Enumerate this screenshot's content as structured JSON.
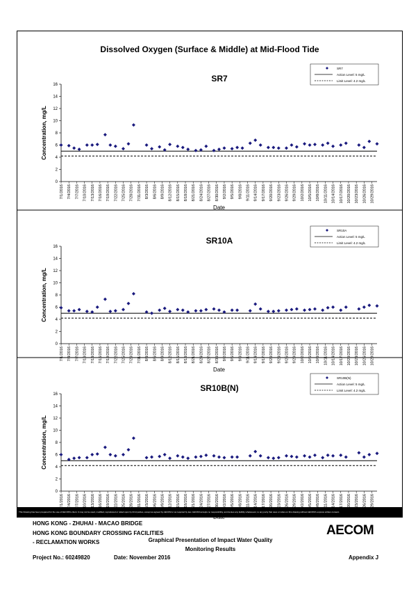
{
  "main_title": "Dissolved Oxygen (Surface & Middle) at Mid-Flood Tide",
  "disclaimer": "This Drawing has been prepared for the use of AECOM's client. It may not be used, modified, reproduced or relied upon by third parties, except as agreed by AECOM or as required by law. AECOM accepts no responsibility, and denies any liability whatsoever, to any party that uses or relies on this drawing without AECOM's express written consent.",
  "footer": {
    "project_line1": "HONG KONG - ZHUHAI - MACAO BRIDGE",
    "project_line2": "HONG KONG BOUNDARY CROSSING FACILITIES",
    "project_line3": "- RECLAMATION WORKS",
    "description_line1": "Graphical Presentation of Impact Water Quality",
    "description_line2": "Monitoring Results",
    "project_no": "Project No.: 60249820",
    "date": "Date: November 2016",
    "appendix": "Appendix J",
    "logo": "AECOM"
  },
  "colors": {
    "marker": "#1a1a7e",
    "line": "#000000"
  },
  "chart_data": [
    {
      "type": "scatter",
      "title": "SR7",
      "xlabel": "Date",
      "ylabel": "Concentration, mg/L",
      "ylim": [
        0,
        16
      ],
      "yticks": [
        "0",
        "2",
        "4",
        "6",
        "8",
        "10",
        "12",
        "14",
        "16"
      ],
      "xticks": [
        "7/1/2016",
        "7/4/2016",
        "7/7/2016",
        "7/10/2016",
        "7/13/2016",
        "7/16/2016",
        "7/19/2016",
        "7/22/2016",
        "7/25/2016",
        "7/28/2016",
        "7/31/2016",
        "8/3/2016",
        "8/6/2016",
        "8/9/2016",
        "8/12/2016",
        "8/15/2016",
        "8/18/2016",
        "8/21/2016",
        "8/24/2016",
        "8/27/2016",
        "8/30/2016",
        "9/2/2016",
        "9/5/2016",
        "9/8/2016",
        "9/11/2016",
        "9/14/2016",
        "9/17/2016",
        "9/20/2016",
        "9/23/2016",
        "9/26/2016",
        "9/29/2016",
        "10/2/2016",
        "10/5/2016",
        "10/8/2016",
        "10/11/2016",
        "10/14/2016",
        "10/17/2016",
        "10/20/2016",
        "10/23/2016",
        "10/26/2016",
        "10/29/2016"
      ],
      "legend_position": "top-right",
      "legend": [
        "SR7",
        "Action Level: 5 mg/L",
        "Limit Level: 4.2 mg/L"
      ],
      "action_level": 5,
      "limit_level": 4.2,
      "series": [
        {
          "name": "SR7",
          "x": [
            "7/1/2016",
            "7/4/2016",
            "7/6/2016",
            "7/8/2016",
            "7/11/2016",
            "7/13/2016",
            "7/15/2016",
            "7/18/2016",
            "7/20/2016",
            "7/22/2016",
            "7/25/2016",
            "7/27/2016",
            "7/29/2016",
            "8/3/2016",
            "8/5/2016",
            "8/8/2016",
            "8/10/2016",
            "8/12/2016",
            "8/15/2016",
            "8/17/2016",
            "8/19/2016",
            "8/22/2016",
            "8/24/2016",
            "8/26/2016",
            "8/29/2016",
            "8/31/2016",
            "9/2/2016",
            "9/5/2016",
            "9/7/2016",
            "9/9/2016",
            "9/12/2016",
            "9/14/2016",
            "9/16/2016",
            "9/19/2016",
            "9/21/2016",
            "9/23/2016",
            "9/26/2016",
            "9/28/2016",
            "9/30/2016",
            "10/3/2016",
            "10/5/2016",
            "10/7/2016",
            "10/10/2016",
            "10/12/2016",
            "10/14/2016",
            "10/17/2016",
            "10/19/2016",
            "10/24/2016",
            "10/26/2016",
            "10/28/2016",
            "10/31/2016"
          ],
          "values": [
            6.0,
            5.9,
            5.5,
            5.3,
            6.0,
            6.0,
            6.1,
            7.7,
            6.0,
            5.8,
            5.4,
            6.2,
            9.3,
            6.0,
            5.4,
            5.7,
            5.2,
            6.1,
            5.8,
            5.6,
            5.3,
            5.1,
            5.2,
            5.8,
            5.1,
            5.3,
            5.5,
            5.4,
            5.6,
            5.5,
            6.3,
            6.8,
            6.0,
            5.6,
            5.6,
            5.5,
            5.5,
            6.0,
            5.7,
            6.2,
            6.0,
            6.1,
            6.0,
            6.3,
            5.8,
            6.0,
            6.3,
            6.0,
            5.6,
            6.6,
            6.2
          ]
        }
      ]
    },
    {
      "type": "scatter",
      "title": "SR10A",
      "xlabel": "Date",
      "ylabel": "Concentration, mg/L",
      "ylim": [
        0,
        16
      ],
      "yticks": [
        "0",
        "2",
        "4",
        "6",
        "8",
        "10",
        "12",
        "14",
        "16"
      ],
      "xticks": [
        "7/1/2016",
        "7/4/2016",
        "7/7/2016",
        "7/10/2016",
        "7/13/2016",
        "7/16/2016",
        "7/19/2016",
        "7/22/2016",
        "7/25/2016",
        "7/28/2016",
        "7/31/2016",
        "8/3/2016",
        "8/6/2016",
        "8/9/2016",
        "8/12/2016",
        "8/15/2016",
        "8/18/2016",
        "8/21/2016",
        "8/24/2016",
        "8/27/2016",
        "8/30/2016",
        "9/2/2016",
        "9/5/2016",
        "9/8/2016",
        "9/11/2016",
        "9/14/2016",
        "9/17/2016",
        "9/20/2016",
        "9/23/2016",
        "9/26/2016",
        "9/29/2016",
        "10/2/2016",
        "10/5/2016",
        "10/8/2016",
        "10/11/2016",
        "10/14/2016",
        "10/17/2016",
        "10/20/2016",
        "10/23/2016",
        "10/26/2016",
        "10/29/2016"
      ],
      "legend_position": "top-right",
      "legend": [
        "SR10A",
        "Action Level: 5 mg/L",
        "Limit Level: 4.2 mg/L"
      ],
      "action_level": 5,
      "limit_level": 4.2,
      "series": [
        {
          "name": "SR10A",
          "x": [
            "7/1/2016",
            "7/4/2016",
            "7/6/2016",
            "7/8/2016",
            "7/11/2016",
            "7/13/2016",
            "7/15/2016",
            "7/18/2016",
            "7/20/2016",
            "7/22/2016",
            "7/25/2016",
            "7/27/2016",
            "7/29/2016",
            "8/3/2016",
            "8/5/2016",
            "8/8/2016",
            "8/10/2016",
            "8/12/2016",
            "8/15/2016",
            "8/17/2016",
            "8/19/2016",
            "8/22/2016",
            "8/24/2016",
            "8/26/2016",
            "8/29/2016",
            "8/31/2016",
            "9/2/2016",
            "9/5/2016",
            "9/7/2016",
            "9/12/2016",
            "9/14/2016",
            "9/16/2016",
            "9/19/2016",
            "9/21/2016",
            "9/23/2016",
            "9/26/2016",
            "9/28/2016",
            "9/30/2016",
            "10/3/2016",
            "10/5/2016",
            "10/7/2016",
            "10/10/2016",
            "10/12/2016",
            "10/14/2016",
            "10/17/2016",
            "10/19/2016",
            "10/24/2016",
            "10/26/2016",
            "10/28/2016",
            "10/31/2016"
          ],
          "values": [
            5.9,
            5.4,
            5.4,
            5.6,
            5.3,
            5.2,
            6.0,
            7.3,
            5.3,
            5.4,
            5.6,
            6.6,
            8.2,
            5.2,
            5.0,
            5.5,
            5.8,
            5.3,
            5.6,
            5.5,
            5.2,
            5.4,
            5.4,
            5.6,
            5.7,
            5.5,
            5.2,
            5.5,
            5.5,
            5.4,
            6.5,
            5.7,
            5.3,
            5.3,
            5.4,
            5.5,
            5.6,
            5.7,
            5.5,
            5.6,
            5.7,
            5.5,
            5.9,
            6.0,
            5.5,
            6.0,
            5.7,
            6.0,
            6.3,
            6.2
          ]
        }
      ]
    },
    {
      "type": "scatter",
      "title": "SR10B(N)",
      "xlabel": "Date",
      "ylabel": "Concentration, mg/L",
      "ylim": [
        0,
        16
      ],
      "yticks": [
        "0",
        "2",
        "4",
        "6",
        "8",
        "10",
        "12",
        "14",
        "16"
      ],
      "xticks": [
        "7/1/2016",
        "7/4/2016",
        "7/7/2016",
        "7/10/2016",
        "7/13/2016",
        "7/16/2016",
        "7/19/2016",
        "7/22/2016",
        "7/25/2016",
        "7/28/2016",
        "7/31/2016",
        "8/3/2016",
        "8/6/2016",
        "8/9/2016",
        "8/12/2016",
        "8/15/2016",
        "8/18/2016",
        "8/21/2016",
        "8/24/2016",
        "8/27/2016",
        "8/30/2016",
        "9/2/2016",
        "9/5/2016",
        "9/8/2016",
        "9/11/2016",
        "9/14/2016",
        "9/17/2016",
        "9/20/2016",
        "9/23/2016",
        "9/26/2016",
        "9/29/2016",
        "10/2/2016",
        "10/5/2016",
        "10/8/2016",
        "10/11/2016",
        "10/14/2016",
        "10/17/2016",
        "10/20/2016",
        "10/23/2016",
        "10/26/2016",
        "10/29/2016"
      ],
      "legend_position": "top-right",
      "legend": [
        "SR10B(N)",
        "Action Level: 5 mg/L",
        "Limit Level: 4.2 mg/L"
      ],
      "action_level": 5,
      "limit_level": 4.2,
      "series": [
        {
          "name": "SR10B(N)",
          "x": [
            "7/1/2016",
            "7/4/2016",
            "7/6/2016",
            "7/8/2016",
            "7/11/2016",
            "7/13/2016",
            "7/15/2016",
            "7/18/2016",
            "7/20/2016",
            "7/22/2016",
            "7/25/2016",
            "7/27/2016",
            "7/29/2016",
            "8/3/2016",
            "8/5/2016",
            "8/8/2016",
            "8/10/2016",
            "8/12/2016",
            "8/15/2016",
            "8/17/2016",
            "8/19/2016",
            "8/22/2016",
            "8/24/2016",
            "8/26/2016",
            "8/29/2016",
            "8/31/2016",
            "9/2/2016",
            "9/5/2016",
            "9/7/2016",
            "9/12/2016",
            "9/14/2016",
            "9/16/2016",
            "9/19/2016",
            "9/21/2016",
            "9/23/2016",
            "9/26/2016",
            "9/28/2016",
            "9/30/2016",
            "10/3/2016",
            "10/5/2016",
            "10/7/2016",
            "10/10/2016",
            "10/12/2016",
            "10/14/2016",
            "10/17/2016",
            "10/19/2016",
            "10/24/2016",
            "10/26/2016",
            "10/28/2016",
            "10/31/2016"
          ],
          "values": [
            6.0,
            5.2,
            5.4,
            5.5,
            5.5,
            6.0,
            6.1,
            7.2,
            6.0,
            5.8,
            6.0,
            6.8,
            8.7,
            5.5,
            5.6,
            5.7,
            6.0,
            5.4,
            5.8,
            5.6,
            5.4,
            5.6,
            5.7,
            5.9,
            5.8,
            5.6,
            5.5,
            5.6,
            5.6,
            5.8,
            6.5,
            5.8,
            5.5,
            5.4,
            5.5,
            5.8,
            5.7,
            5.6,
            5.8,
            5.6,
            5.9,
            5.5,
            5.9,
            5.8,
            5.9,
            5.6,
            6.3,
            5.6,
            6.0,
            6.2
          ]
        }
      ]
    }
  ]
}
